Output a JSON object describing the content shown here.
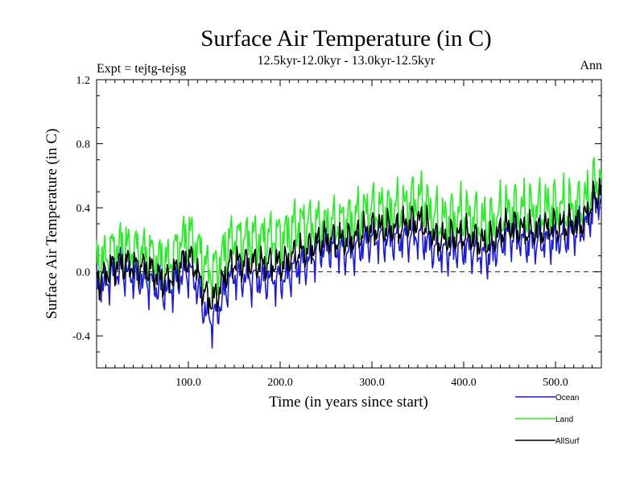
{
  "chart_data": {
    "type": "line",
    "title": "Surface Air Temperature (in C)",
    "subtitle": "12.5kyr-12.0kyr - 13.0kyr-12.5kyr",
    "expt_label": "Expt = tejtg-tejsg",
    "season_label": "Ann",
    "xlabel": "Time (in years since start)",
    "ylabel": "Surface Air Temperature (in C)",
    "xlim": [
      0,
      550
    ],
    "ylim": [
      -0.6,
      1.2
    ],
    "x_ticks": [
      100,
      200,
      300,
      400,
      500
    ],
    "x_tick_labels": [
      "100.0",
      "200.0",
      "300.0",
      "400.0",
      "500.0"
    ],
    "y_ticks": [
      -0.4,
      0.0,
      0.4,
      0.8,
      1.2
    ],
    "y_tick_labels": [
      "-0.4",
      "0.0",
      "0.4",
      "0.8",
      "1.2"
    ],
    "reference_line": 0.0,
    "x": [
      0,
      25,
      50,
      75,
      100,
      125,
      150,
      175,
      200,
      225,
      250,
      275,
      300,
      325,
      350,
      375,
      400,
      425,
      450,
      475,
      500,
      525,
      550
    ],
    "series": [
      {
        "name": "Ocean",
        "color": "#1a1ae6",
        "values": [
          -0.1,
          0.0,
          -0.05,
          -0.12,
          0.0,
          -0.3,
          -0.03,
          -0.05,
          -0.05,
          0.05,
          0.15,
          0.12,
          0.2,
          0.2,
          0.22,
          0.12,
          0.15,
          0.1,
          0.22,
          0.18,
          0.2,
          0.25,
          0.45
        ]
      },
      {
        "name": "Land",
        "color": "#22ee22",
        "values": [
          0.05,
          0.15,
          0.12,
          0.05,
          0.22,
          0.0,
          0.2,
          0.2,
          0.22,
          0.3,
          0.28,
          0.32,
          0.38,
          0.38,
          0.45,
          0.32,
          0.35,
          0.3,
          0.38,
          0.38,
          0.4,
          0.4,
          0.58
        ]
      },
      {
        "name": "AllSurf",
        "color": "#000000",
        "values": [
          -0.05,
          0.05,
          0.03,
          -0.05,
          0.08,
          -0.18,
          0.06,
          0.05,
          0.05,
          0.13,
          0.2,
          0.2,
          0.27,
          0.27,
          0.32,
          0.2,
          0.23,
          0.18,
          0.28,
          0.25,
          0.28,
          0.3,
          0.5
        ]
      }
    ],
    "legend_position": "bottom-right",
    "grid": false
  }
}
